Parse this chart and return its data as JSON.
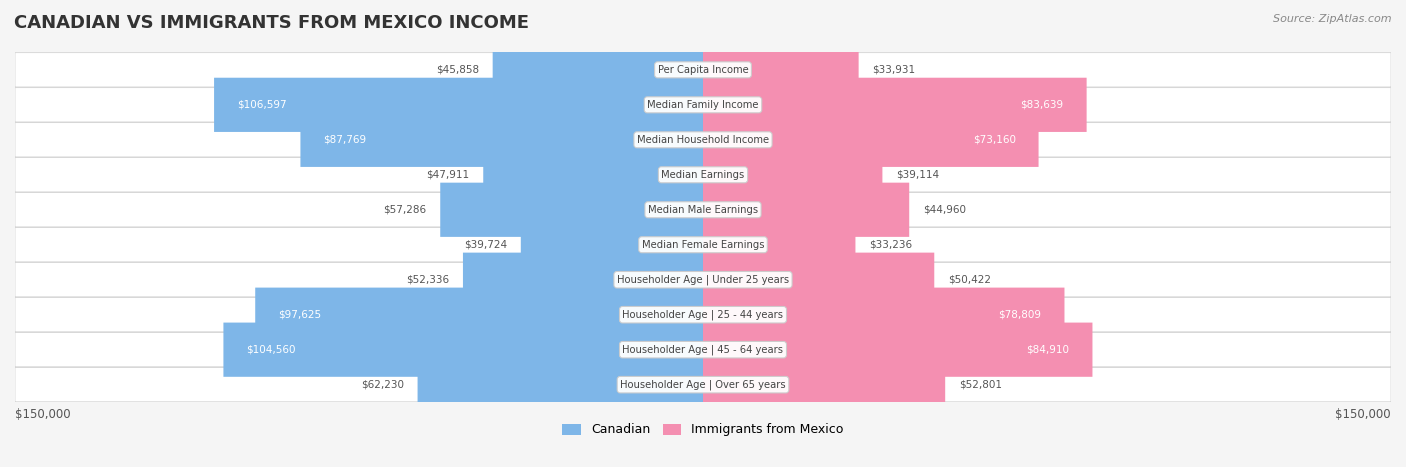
{
  "title": "CANADIAN VS IMMIGRANTS FROM MEXICO INCOME",
  "source": "Source: ZipAtlas.com",
  "categories": [
    "Per Capita Income",
    "Median Family Income",
    "Median Household Income",
    "Median Earnings",
    "Median Male Earnings",
    "Median Female Earnings",
    "Householder Age | Under 25 years",
    "Householder Age | 25 - 44 years",
    "Householder Age | 45 - 64 years",
    "Householder Age | Over 65 years"
  ],
  "canadian_values": [
    45858,
    106597,
    87769,
    47911,
    57286,
    39724,
    52336,
    97625,
    104560,
    62230
  ],
  "mexican_values": [
    33931,
    83639,
    73160,
    39114,
    44960,
    33236,
    50422,
    78809,
    84910,
    52801
  ],
  "canadian_color": "#7EB6E8",
  "mexican_color": "#F48FB1",
  "canadian_label_color_dark": "#5a8ab5",
  "mexican_label_color_dark": "#c06080",
  "max_value": 150000,
  "background_color": "#f5f5f5",
  "row_bg_color": "#ffffff",
  "legend_canadian": "Canadian",
  "legend_mexican": "Immigrants from Mexico",
  "xlabel_left": "$150,000",
  "xlabel_right": "$150,000"
}
